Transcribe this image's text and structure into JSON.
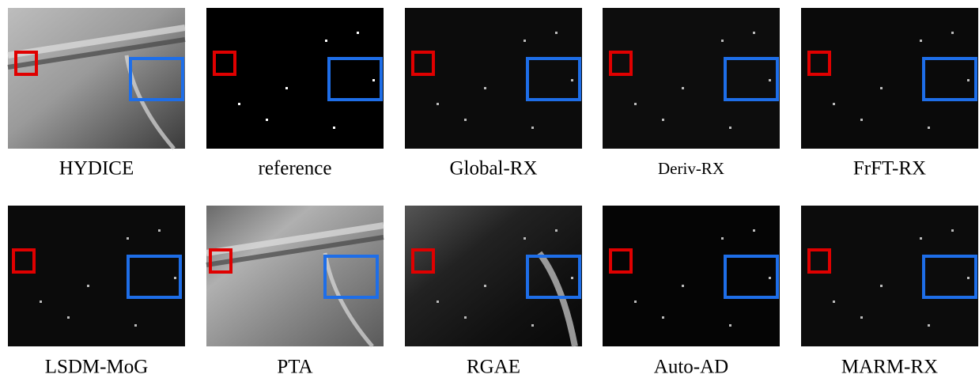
{
  "figure": {
    "panels": [
      {
        "caption": "HYDICE"
      },
      {
        "caption": "reference"
      },
      {
        "caption": "Global-RX"
      },
      {
        "caption": "Deriv-RX"
      },
      {
        "caption": "FrFT-RX"
      },
      {
        "caption": "LSDM-MoG"
      },
      {
        "caption": "PTA"
      },
      {
        "caption": "RGAE"
      },
      {
        "caption": "Auto-AD"
      },
      {
        "caption": "MARM-RX"
      }
    ]
  }
}
